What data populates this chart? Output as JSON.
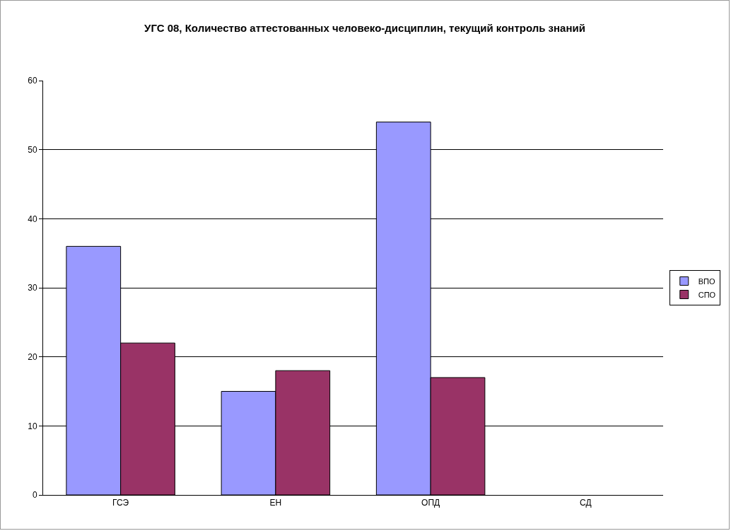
{
  "chart_data": {
    "type": "bar",
    "title": "УГС 08, Количество аттестованных человеко-дисциплин, текущий контроль знаний",
    "categories": [
      "ГСЭ",
      "ЕН",
      "ОПД",
      "СД"
    ],
    "series": [
      {
        "name": "ВПО",
        "color": "#9999ff",
        "values": [
          36,
          15,
          54,
          null
        ]
      },
      {
        "name": "СПО",
        "color": "#993366",
        "values": [
          22,
          18,
          17,
          null
        ]
      }
    ],
    "ylim": [
      0,
      60
    ],
    "yticks": [
      0,
      10,
      20,
      30,
      40,
      50,
      60
    ],
    "grid": "y",
    "legend": "right"
  }
}
